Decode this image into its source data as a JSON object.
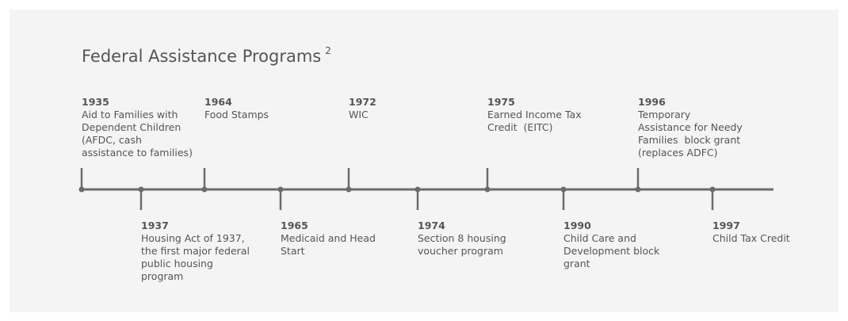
{
  "header": {
    "title": "Federal Assistance Programs",
    "note": "2"
  },
  "events": [
    {
      "year": "1935",
      "lines": [
        "Aid to Families with",
        "Dependent Children",
        "(AFDC, cash",
        "assistance to families)"
      ]
    },
    {
      "year": "1937",
      "lines": [
        "Housing Act of 1937,",
        "the first major federal",
        "public housing",
        "program"
      ]
    },
    {
      "year": "1964",
      "lines": [
        "Food Stamps"
      ]
    },
    {
      "year": "1965",
      "lines": [
        "Medicaid and Head",
        "Start"
      ]
    },
    {
      "year": "1972",
      "lines": [
        "WIC"
      ]
    },
    {
      "year": "1974",
      "lines": [
        "Section 8 housing",
        "voucher program"
      ]
    },
    {
      "year": "1975",
      "lines": [
        "Earned Income Tax",
        "Credit  (EITC)"
      ]
    },
    {
      "year": "1990",
      "lines": [
        "Child Care and",
        "Development block",
        "grant"
      ]
    },
    {
      "year": "1996",
      "lines": [
        "Temporary",
        "Assistance for Needy",
        "Families  block grant",
        "(replaces ADFC)"
      ]
    },
    {
      "year": "1997",
      "lines": [
        "Child Tax Credit"
      ]
    }
  ]
}
